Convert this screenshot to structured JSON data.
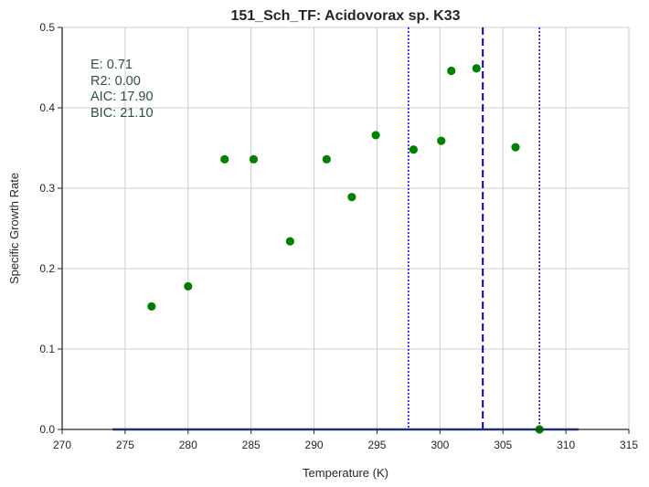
{
  "chart_data": {
    "type": "scatter",
    "title": "151_Sch_TF: Acidovorax sp. K33",
    "xlabel": "Temperature (K)",
    "ylabel": "Specific Growth Rate",
    "xlim": [
      270,
      315
    ],
    "ylim": [
      0.0,
      0.5
    ],
    "xticks": [
      270,
      275,
      280,
      285,
      290,
      295,
      300,
      305,
      310,
      315
    ],
    "yticks": [
      0.0,
      0.1,
      0.2,
      0.3,
      0.4,
      0.5
    ],
    "xtick_labels": [
      "270",
      "275",
      "280",
      "285",
      "290",
      "295",
      "300",
      "305",
      "310",
      "315"
    ],
    "ytick_labels": [
      "0.0",
      "0.1",
      "0.2",
      "0.3",
      "0.4",
      "0.5"
    ],
    "grid": true,
    "points": {
      "color": "#008000",
      "x": [
        277.1,
        280.0,
        282.9,
        285.2,
        288.1,
        291.0,
        293.0,
        294.9,
        297.9,
        300.1,
        300.9,
        302.9,
        306.0,
        307.9
      ],
      "y": [
        0.153,
        0.178,
        0.336,
        0.336,
        0.234,
        0.336,
        0.289,
        0.366,
        0.348,
        0.359,
        0.446,
        0.449,
        0.351,
        0.0
      ]
    },
    "fit_line": {
      "color": "#1f3fbf",
      "x": [
        274.0,
        311.0
      ],
      "y": [
        0.0,
        0.0
      ]
    },
    "vlines": [
      {
        "x": 297.5,
        "style": "dotted",
        "color": "#0000ff"
      },
      {
        "x": 303.4,
        "style": "dashed",
        "color": "#0000cc"
      },
      {
        "x": 307.9,
        "style": "dotted",
        "color": "#0000ff"
      }
    ],
    "annotations": [
      {
        "key": "E",
        "text": "E:  0.71"
      },
      {
        "key": "R2",
        "text": "R2:  0.00"
      },
      {
        "key": "AIC",
        "text": "AIC: 17.90"
      },
      {
        "key": "BIC",
        "text": "BIC: 21.10"
      }
    ]
  }
}
